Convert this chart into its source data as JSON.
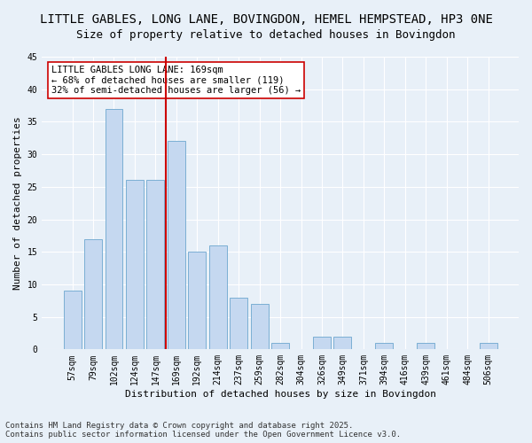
{
  "title1": "LITTLE GABLES, LONG LANE, BOVINGDON, HEMEL HEMPSTEAD, HP3 0NE",
  "title2": "Size of property relative to detached houses in Bovingdon",
  "xlabel": "Distribution of detached houses by size in Bovingdon",
  "ylabel": "Number of detached properties",
  "categories": [
    "57sqm",
    "79sqm",
    "102sqm",
    "124sqm",
    "147sqm",
    "169sqm",
    "192sqm",
    "214sqm",
    "237sqm",
    "259sqm",
    "282sqm",
    "304sqm",
    "326sqm",
    "349sqm",
    "371sqm",
    "394sqm",
    "416sqm",
    "439sqm",
    "461sqm",
    "484sqm",
    "506sqm"
  ],
  "values": [
    9,
    17,
    37,
    26,
    26,
    32,
    15,
    16,
    8,
    7,
    1,
    0,
    2,
    2,
    0,
    1,
    0,
    1,
    0,
    0,
    1
  ],
  "bar_color": "#c5d8f0",
  "bar_edge_color": "#7bafd4",
  "vline_x_idx": 5,
  "vline_color": "#cc0000",
  "annotation_text": "LITTLE GABLES LONG LANE: 169sqm\n← 68% of detached houses are smaller (119)\n32% of semi-detached houses are larger (56) →",
  "annotation_box_color": "#ffffff",
  "annotation_box_edge": "#cc0000",
  "ylim": [
    0,
    45
  ],
  "yticks": [
    0,
    5,
    10,
    15,
    20,
    25,
    30,
    35,
    40,
    45
  ],
  "bg_color": "#e8f0f8",
  "plot_bg_color": "#e8f0f8",
  "footer": "Contains HM Land Registry data © Crown copyright and database right 2025.\nContains public sector information licensed under the Open Government Licence v3.0.",
  "title_fontsize": 10,
  "subtitle_fontsize": 9,
  "axis_label_fontsize": 8,
  "tick_fontsize": 7,
  "annotation_fontsize": 7.5,
  "footer_fontsize": 6.5
}
